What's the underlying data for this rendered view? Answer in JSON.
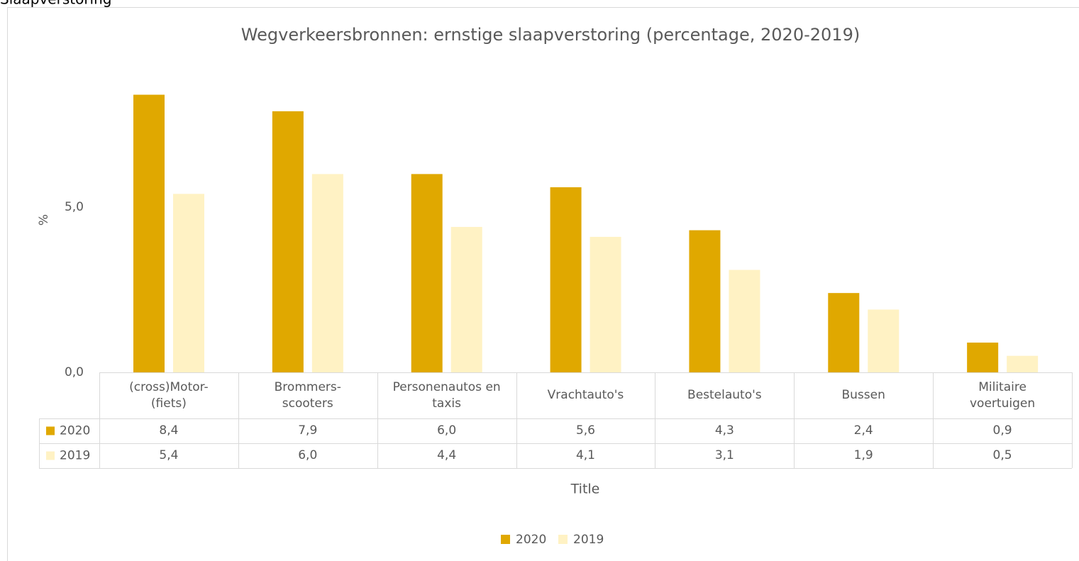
{
  "heading": "Slaapverstoring",
  "chart_data": {
    "type": "bar",
    "title": "Wegverkeersbronnen: ernstige slaapverstoring (percentage, 2020-2019)",
    "y_label": "%",
    "x_label": "Title",
    "categories": [
      "(cross)Motor-\n(fiets)",
      "Brommers-\nscooters",
      "Personenautos en\ntaxis",
      "Vrachtauto's",
      "Bestelauto's",
      "Bussen",
      "Militaire\nvoertuigen"
    ],
    "series": [
      {
        "name": "2020",
        "color": "#e0a800",
        "values": [
          8.4,
          7.9,
          6.0,
          5.6,
          4.3,
          2.4,
          0.9
        ],
        "value_labels": [
          "8,4",
          "7,9",
          "6,0",
          "5,6",
          "4,3",
          "2,4",
          "0,9"
        ]
      },
      {
        "name": "2019",
        "color": "#fff2c4",
        "values": [
          5.4,
          6.0,
          4.4,
          4.1,
          3.1,
          1.9,
          0.5
        ],
        "value_labels": [
          "5,4",
          "6,0",
          "4,4",
          "4,1",
          "3,1",
          "1,9",
          "0,5"
        ]
      }
    ],
    "ylim": [
      0,
      10
    ],
    "yticks": [
      {
        "value": 0,
        "label": "0,0"
      },
      {
        "value": 5,
        "label": "5,0"
      }
    ],
    "grid": false,
    "legend": "bottom"
  }
}
